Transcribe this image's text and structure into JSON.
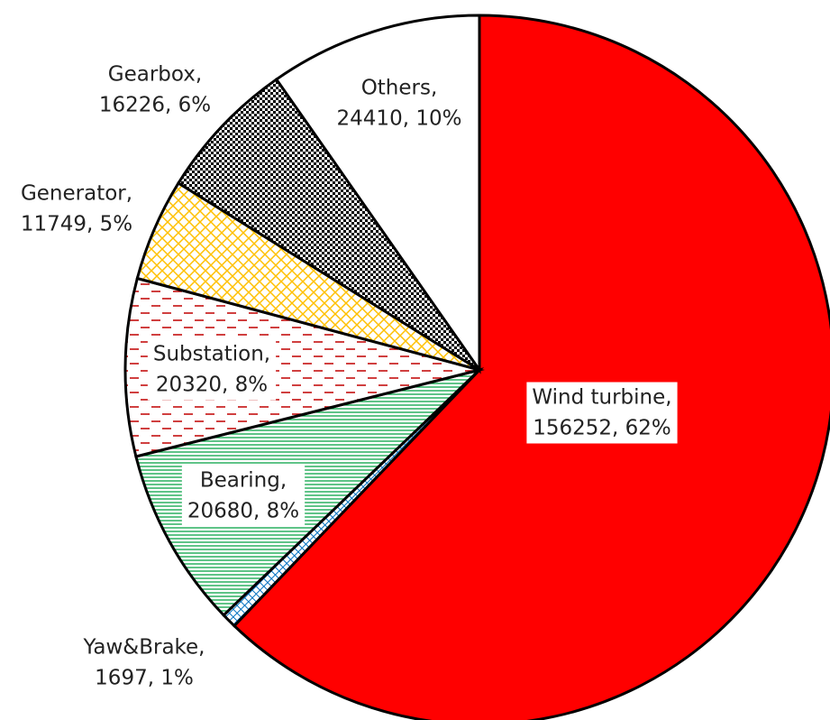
{
  "chart_data": {
    "type": "pie",
    "categories": [
      "Wind turbine,",
      "Yaw&Brake,",
      "Bearing,",
      "Substation,",
      "Generator,",
      "Gearbox,",
      "Others,"
    ],
    "values": [
      156252,
      1697,
      20680,
      20320,
      11749,
      16226,
      24410
    ],
    "value_labels": [
      "156252, 62%",
      "1697, 1%",
      "20680, 8%",
      "20320, 8%",
      "11749, 5%",
      "16226, 6%",
      "24410, 10%"
    ],
    "colors": [
      "#ff0000",
      "#0070c0",
      "#00a040",
      "#c00000",
      "#ffc000",
      "#000000",
      "#ffffff"
    ],
    "fills": [
      "solid",
      "crosshatch",
      "hlines",
      "dashes",
      "lattice",
      "checker",
      "solid"
    ],
    "start_angle": 0,
    "direction": "clockwise"
  }
}
